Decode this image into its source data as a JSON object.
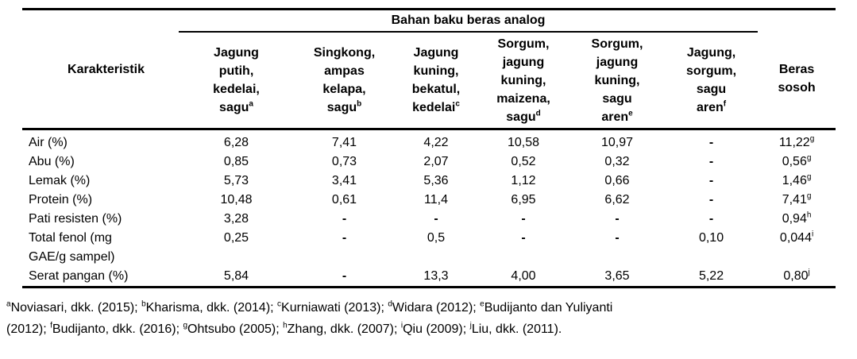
{
  "table": {
    "group_header": "Bahan baku beras analog",
    "col_karakteristik": "Karakteristik",
    "beras_sosoh_lines": [
      "Beras",
      "sosoh"
    ],
    "analog_columns": [
      {
        "lines": [
          "Jagung",
          "putih,",
          "kedelai,",
          "sagu"
        ],
        "sup": "a"
      },
      {
        "lines": [
          "Singkong,",
          "ampas",
          "kelapa,",
          "sagu"
        ],
        "sup": "b"
      },
      {
        "lines": [
          "Jagung",
          "kuning,",
          "bekatul,",
          "kedelai"
        ],
        "sup": "c"
      },
      {
        "lines": [
          "Sorgum,",
          "jagung",
          "kuning,",
          "maizena,",
          "sagu"
        ],
        "sup": "d"
      },
      {
        "lines": [
          "Sorgum,",
          "jagung",
          "kuning,",
          "sagu",
          "aren"
        ],
        "sup": "e"
      },
      {
        "lines": [
          "Jagung,",
          "sorgum,",
          "sagu",
          "aren"
        ],
        "sup": "f"
      }
    ],
    "rows": [
      {
        "label_lines": [
          "Air (%)"
        ],
        "values": [
          {
            "t": "6,28"
          },
          {
            "t": "7,41"
          },
          {
            "t": "4,22"
          },
          {
            "t": "10,58"
          },
          {
            "t": "10,97"
          },
          {
            "t": "-"
          },
          {
            "t": "11,22",
            "sup": "g"
          }
        ]
      },
      {
        "label_lines": [
          "Abu (%)"
        ],
        "values": [
          {
            "t": "0,85"
          },
          {
            "t": "0,73"
          },
          {
            "t": "2,07"
          },
          {
            "t": "0,52"
          },
          {
            "t": "0,32"
          },
          {
            "t": "-"
          },
          {
            "t": "0,56",
            "sup": "g"
          }
        ]
      },
      {
        "label_lines": [
          "Lemak (%)"
        ],
        "values": [
          {
            "t": "5,73"
          },
          {
            "t": "3,41"
          },
          {
            "t": "5,36"
          },
          {
            "t": "1,12"
          },
          {
            "t": "0,66"
          },
          {
            "t": "-"
          },
          {
            "t": "1,46",
            "sup": "g"
          }
        ]
      },
      {
        "label_lines": [
          "Protein (%)"
        ],
        "values": [
          {
            "t": "10,48"
          },
          {
            "t": "0,61"
          },
          {
            "t": "11,4"
          },
          {
            "t": "6,95"
          },
          {
            "t": "6,62"
          },
          {
            "t": "-"
          },
          {
            "t": "7,41",
            "sup": "g"
          }
        ]
      },
      {
        "label_lines": [
          "Pati resisten (%)"
        ],
        "values": [
          {
            "t": "3,28"
          },
          {
            "t": "-"
          },
          {
            "t": "-"
          },
          {
            "t": "-"
          },
          {
            "t": "-"
          },
          {
            "t": "-"
          },
          {
            "t": "0,94",
            "sup": "h"
          }
        ]
      },
      {
        "label_lines": [
          "Total fenol (mg",
          "GAE/g sampel)"
        ],
        "values": [
          {
            "t": "0,25"
          },
          {
            "t": "-"
          },
          {
            "t": "0,5"
          },
          {
            "t": "-"
          },
          {
            "t": "-"
          },
          {
            "t": "0,10"
          },
          {
            "t": "0,044",
            "sup": "i"
          }
        ]
      },
      {
        "label_lines": [
          "Serat pangan (%)"
        ],
        "values": [
          {
            "t": "5,84"
          },
          {
            "t": "-"
          },
          {
            "t": "13,3"
          },
          {
            "t": "4,00"
          },
          {
            "t": "3,65"
          },
          {
            "t": "5,22"
          },
          {
            "t": "0,80",
            "sup": "j"
          }
        ]
      }
    ]
  },
  "footnote": {
    "line1": [
      {
        "sup": "a",
        "text": "Noviasari, dkk. (2015); "
      },
      {
        "sup": "b",
        "text": "Kharisma, dkk. (2014); "
      },
      {
        "sup": "c",
        "text": "Kurniawati (2013); "
      },
      {
        "sup": "d",
        "text": "Widara (2012); "
      },
      {
        "sup": "e",
        "text": "Budijanto dan Yuliyanti"
      }
    ],
    "line2": [
      {
        "text": "(2012); "
      },
      {
        "sup": "f",
        "text": "Budijanto, dkk. (2016); "
      },
      {
        "sup": "g",
        "text": "Ohtsubo (2005); "
      },
      {
        "sup": "h",
        "text": "Zhang, dkk. (2007); "
      },
      {
        "sup": "i",
        "text": "Qiu (2009);  "
      },
      {
        "sup": "j",
        "text": "Liu, dkk. (2011)."
      }
    ]
  }
}
